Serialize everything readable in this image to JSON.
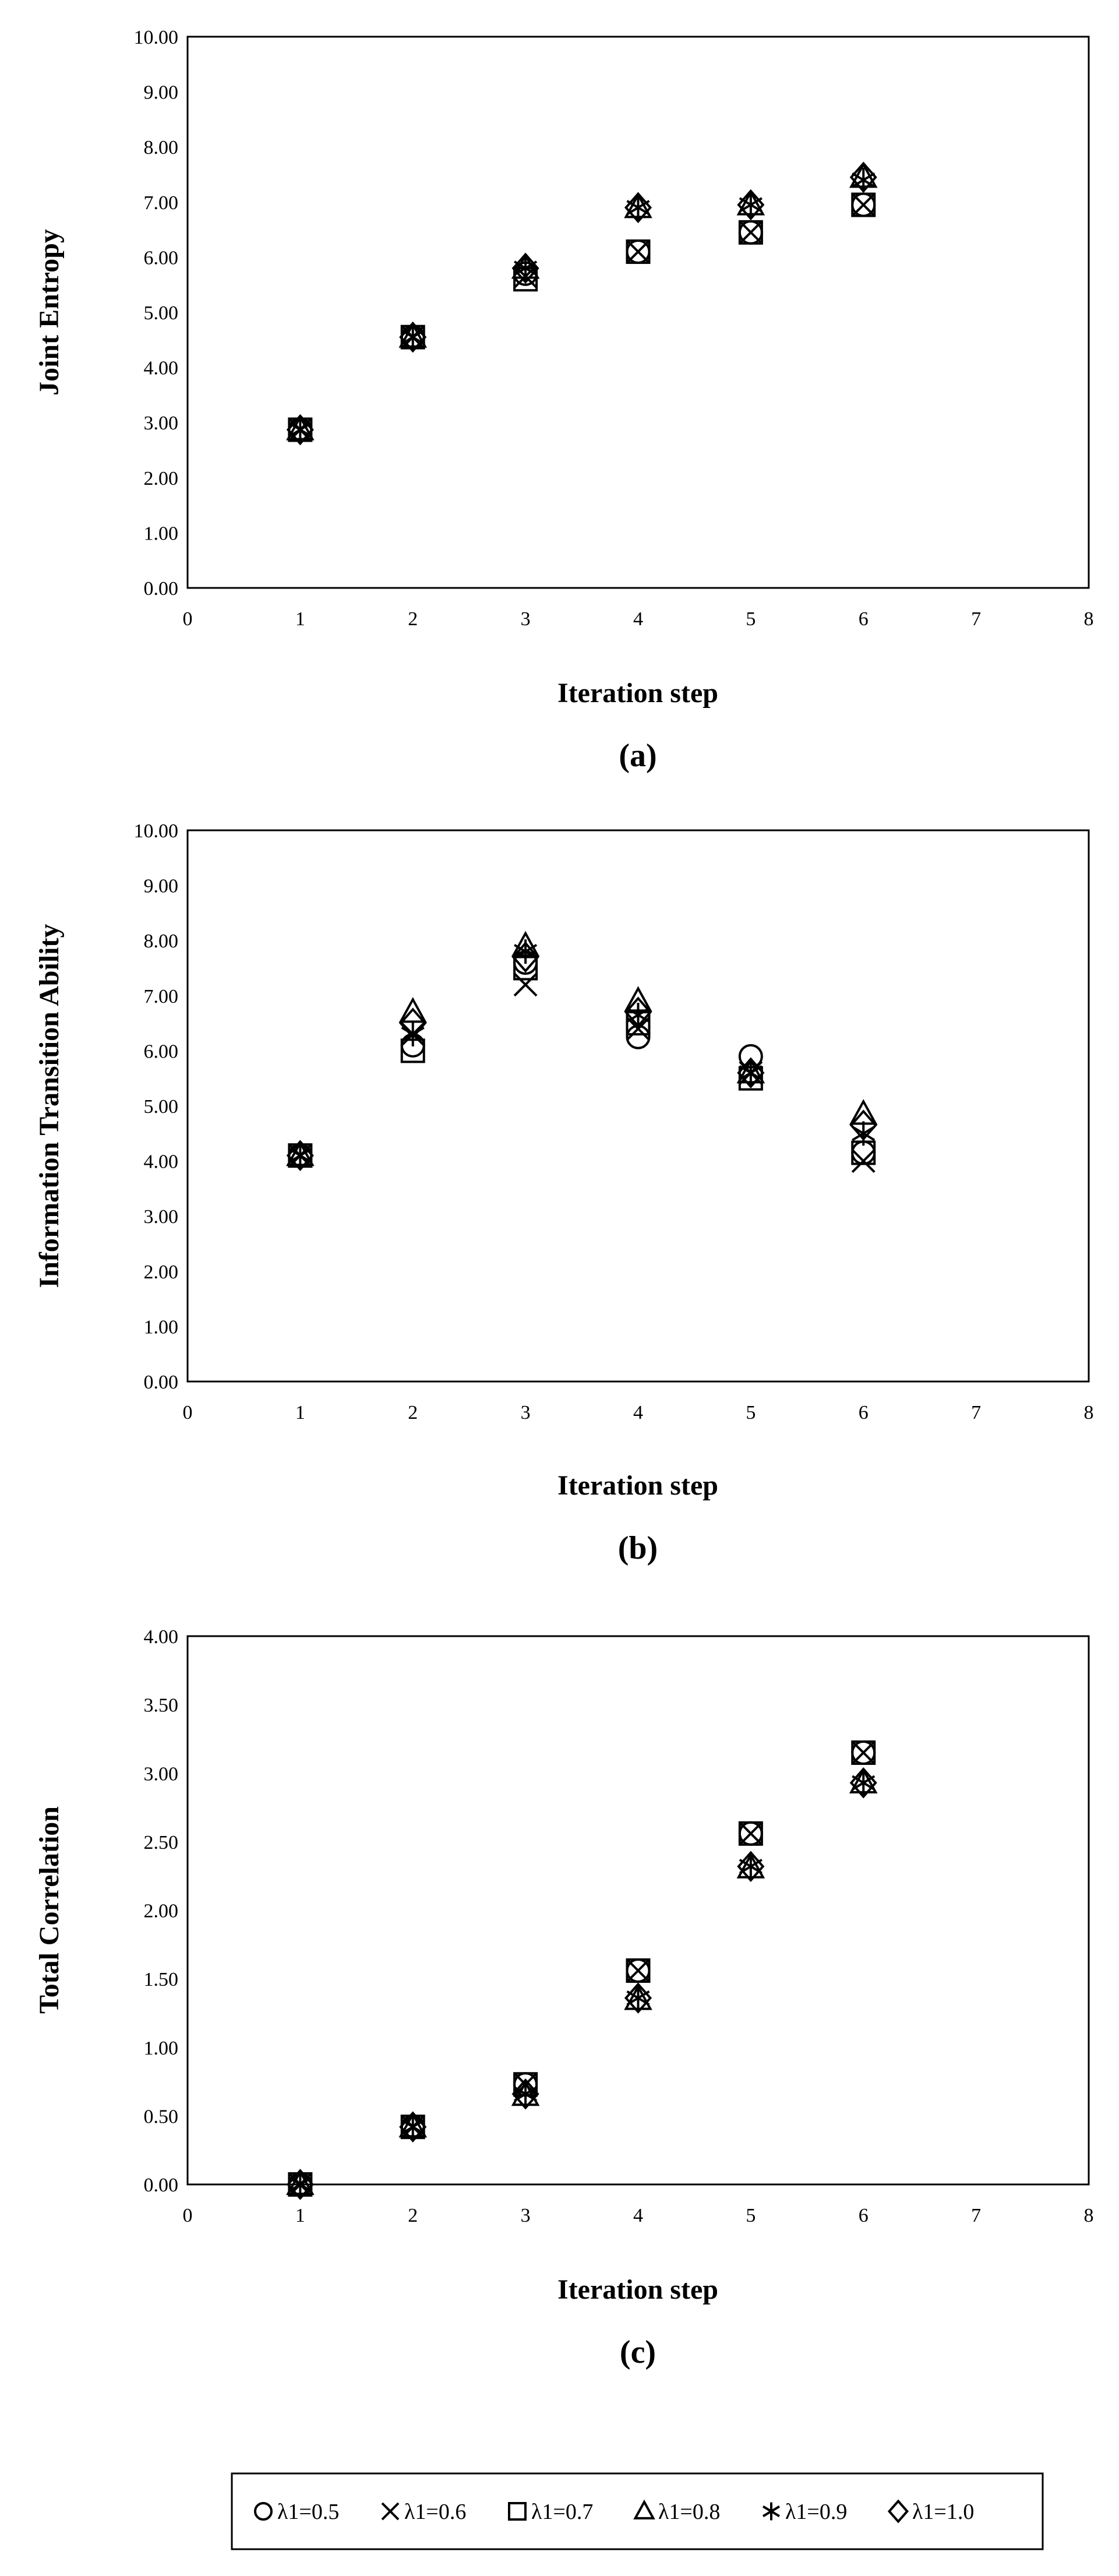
{
  "legend": [
    {
      "id": "s05",
      "label": "λ1=0.5",
      "marker": "circle"
    },
    {
      "id": "s06",
      "label": "λ1=0.6",
      "marker": "x"
    },
    {
      "id": "s07",
      "label": "λ1=0.7",
      "marker": "square"
    },
    {
      "id": "s08",
      "label": "λ1=0.8",
      "marker": "triangle"
    },
    {
      "id": "s09",
      "label": "λ1=0.9",
      "marker": "asterisk"
    },
    {
      "id": "s10",
      "label": "λ1=1.0",
      "marker": "diamond"
    }
  ],
  "chart_data": [
    {
      "type": "scatter",
      "panel_label": "(a)",
      "xlabel": "Iteration step",
      "ylabel": "Joint Entropy",
      "xlim": [
        0,
        8
      ],
      "ylim": [
        0,
        10
      ],
      "x_ticks": [
        "0",
        "1",
        "2",
        "3",
        "4",
        "5",
        "6",
        "7",
        "8"
      ],
      "y_ticks": [
        "0.00",
        "1.00",
        "2.00",
        "3.00",
        "4.00",
        "5.00",
        "6.00",
        "7.00",
        "8.00",
        "9.00",
        "10.00"
      ],
      "x": [
        1,
        2,
        3,
        4,
        5,
        6
      ],
      "series": [
        {
          "name": "λ1=0.5",
          "values": [
            2.87,
            4.55,
            5.7,
            6.1,
            6.45,
            6.95
          ]
        },
        {
          "name": "λ1=0.6",
          "values": [
            2.87,
            4.55,
            5.65,
            6.1,
            6.45,
            6.95
          ]
        },
        {
          "name": "λ1=0.7",
          "values": [
            2.87,
            4.55,
            5.6,
            6.1,
            6.45,
            6.95
          ]
        },
        {
          "name": "λ1=0.8",
          "values": [
            2.87,
            4.55,
            5.8,
            6.9,
            6.95,
            7.45
          ]
        },
        {
          "name": "λ1=0.9",
          "values": [
            2.87,
            4.55,
            5.8,
            6.9,
            6.95,
            7.4
          ]
        },
        {
          "name": "λ1=1.0",
          "values": [
            2.87,
            4.55,
            5.8,
            6.9,
            6.95,
            7.45
          ]
        }
      ]
    },
    {
      "type": "scatter",
      "panel_label": "(b)",
      "xlabel": "Iteration step",
      "ylabel": "Information Transition Ability",
      "xlim": [
        0,
        8
      ],
      "ylim": [
        0,
        10
      ],
      "x_ticks": [
        "0",
        "1",
        "2",
        "3",
        "4",
        "5",
        "6",
        "7",
        "8"
      ],
      "y_ticks": [
        "0.00",
        "1.00",
        "2.00",
        "3.00",
        "4.00",
        "5.00",
        "6.00",
        "7.00",
        "8.00",
        "9.00",
        "10.00"
      ],
      "x": [
        1,
        2,
        3,
        4,
        5,
        6
      ],
      "series": [
        {
          "name": "λ1=0.5",
          "values": [
            4.1,
            6.1,
            7.6,
            6.25,
            5.9,
            4.15
          ]
        },
        {
          "name": "λ1=0.6",
          "values": [
            4.1,
            6.3,
            7.2,
            6.4,
            5.6,
            4.0
          ]
        },
        {
          "name": "λ1=0.7",
          "values": [
            4.1,
            6.0,
            7.5,
            6.5,
            5.5,
            4.15
          ]
        },
        {
          "name": "λ1=0.8",
          "values": [
            4.1,
            6.7,
            7.9,
            6.9,
            5.6,
            4.85
          ]
        },
        {
          "name": "λ1=0.9",
          "values": [
            4.1,
            6.3,
            7.8,
            6.65,
            5.6,
            4.5
          ]
        },
        {
          "name": "λ1=1.0",
          "values": [
            4.1,
            6.5,
            7.7,
            6.7,
            5.6,
            4.65
          ]
        }
      ]
    },
    {
      "type": "scatter",
      "panel_label": "(c)",
      "xlabel": "Iteration step",
      "ylabel": "Total Correlation",
      "xlim": [
        0,
        8
      ],
      "ylim": [
        0,
        4
      ],
      "x_ticks": [
        "0",
        "1",
        "2",
        "3",
        "4",
        "5",
        "6",
        "7",
        "8"
      ],
      "y_ticks": [
        "0.00",
        "0.50",
        "1.00",
        "1.50",
        "2.00",
        "2.50",
        "3.00",
        "3.50",
        "4.00"
      ],
      "x": [
        1,
        2,
        3,
        4,
        5,
        6
      ],
      "series": [
        {
          "name": "λ1=0.5",
          "values": [
            0.0,
            0.42,
            0.73,
            1.56,
            2.56,
            3.15
          ]
        },
        {
          "name": "λ1=0.6",
          "values": [
            0.0,
            0.42,
            0.73,
            1.56,
            2.56,
            3.15
          ]
        },
        {
          "name": "λ1=0.7",
          "values": [
            0.0,
            0.42,
            0.73,
            1.56,
            2.56,
            3.15
          ]
        },
        {
          "name": "λ1=0.8",
          "values": [
            0.0,
            0.42,
            0.65,
            1.35,
            2.31,
            2.93
          ]
        },
        {
          "name": "λ1=0.9",
          "values": [
            0.0,
            0.42,
            0.66,
            1.36,
            2.32,
            2.93
          ]
        },
        {
          "name": "λ1=1.0",
          "values": [
            0.0,
            0.42,
            0.66,
            1.36,
            2.32,
            2.93
          ]
        }
      ]
    }
  ]
}
